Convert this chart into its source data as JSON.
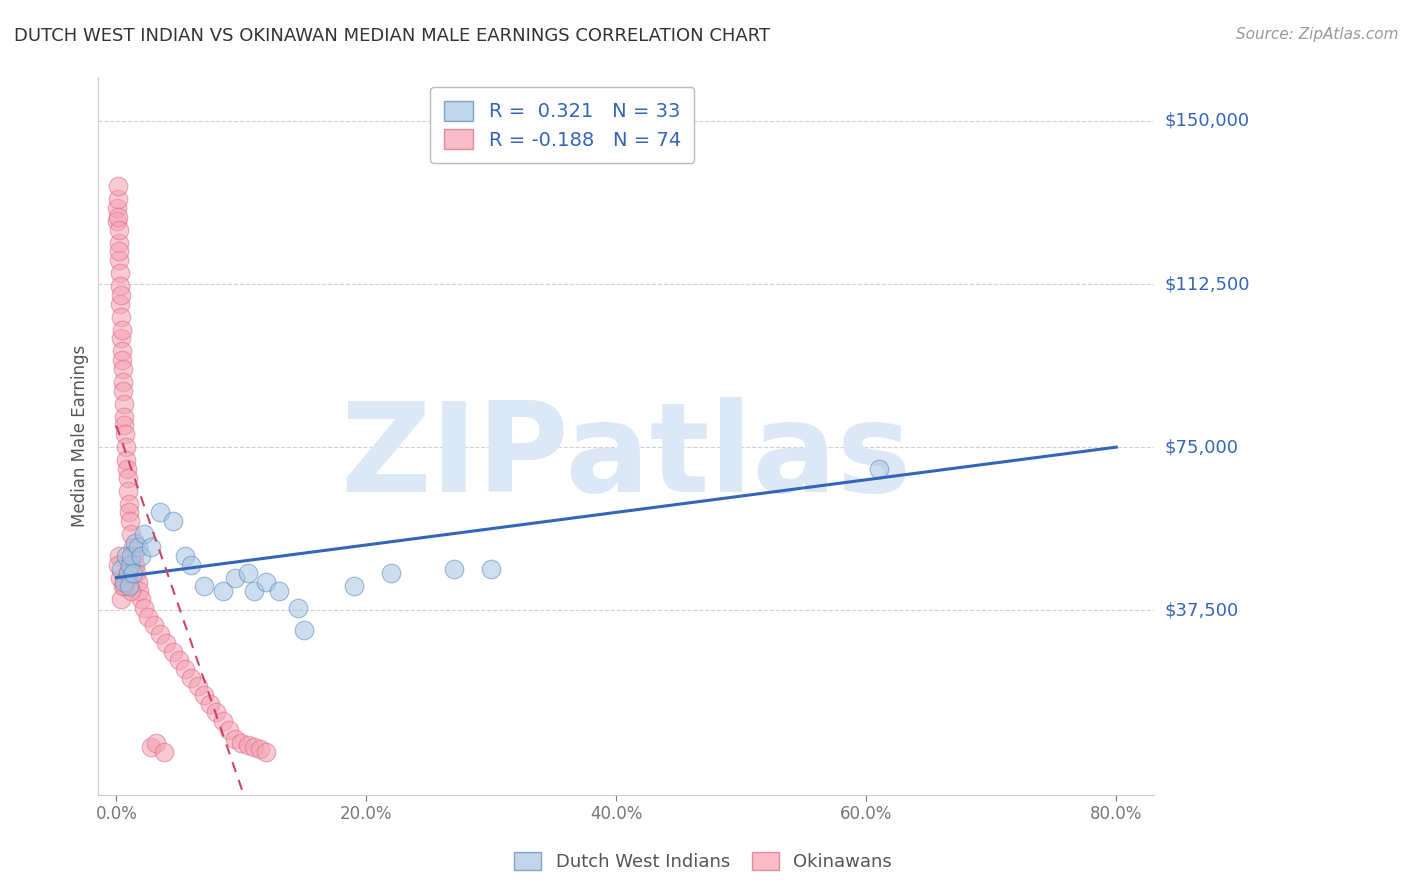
{
  "title": "DUTCH WEST INDIAN VS OKINAWAN MEDIAN MALE EARNINGS CORRELATION CHART",
  "source": "Source: ZipAtlas.com",
  "ylabel": "Median Male Earnings",
  "y_tick_labels": [
    "$37,500",
    "$75,000",
    "$112,500",
    "$150,000"
  ],
  "y_tick_values": [
    37500,
    75000,
    112500,
    150000
  ],
  "x_tick_labels": [
    "0.0%",
    "20.0%",
    "40.0%",
    "60.0%",
    "80.0%"
  ],
  "x_tick_values": [
    0.0,
    20.0,
    40.0,
    60.0,
    80.0
  ],
  "xlim": [
    -1.5,
    83
  ],
  "ylim": [
    -5000,
    160000
  ],
  "blue_color": "#a8c4e0",
  "pink_color": "#f4a0b0",
  "blue_edge": "#5588bb",
  "pink_edge": "#dd6688",
  "trend_blue": "#3366bb",
  "trend_pink": "#cc4466",
  "watermark": "ZIPatlas",
  "watermark_color": "#dce8f5",
  "legend_label_blue": "Dutch West Indians",
  "legend_label_pink": "Okinawans",
  "blue_x": [
    0.4,
    0.6,
    0.8,
    0.9,
    1.0,
    1.1,
    1.2,
    1.3,
    1.5,
    1.7,
    2.0,
    2.2,
    2.8,
    3.5,
    4.5,
    5.5,
    6.0,
    7.0,
    8.5,
    9.5,
    10.5,
    11.0,
    12.0,
    13.0,
    14.5,
    15.0,
    19.0,
    22.0,
    27.0,
    30.0,
    61.0
  ],
  "blue_y": [
    47000,
    44000,
    50000,
    46000,
    43000,
    48000,
    50000,
    46000,
    53000,
    52000,
    50000,
    55000,
    52000,
    60000,
    58000,
    50000,
    48000,
    43000,
    42000,
    45000,
    46000,
    42000,
    44000,
    42000,
    38000,
    33000,
    43000,
    46000,
    47000,
    47000,
    70000
  ],
  "pink_x": [
    0.05,
    0.08,
    0.1,
    0.12,
    0.15,
    0.18,
    0.2,
    0.22,
    0.25,
    0.28,
    0.3,
    0.32,
    0.35,
    0.38,
    0.4,
    0.42,
    0.45,
    0.48,
    0.5,
    0.52,
    0.55,
    0.58,
    0.6,
    0.65,
    0.7,
    0.75,
    0.8,
    0.85,
    0.9,
    0.95,
    1.0,
    1.05,
    1.1,
    1.2,
    1.3,
    1.4,
    1.5,
    1.6,
    1.7,
    1.8,
    2.0,
    2.2,
    2.5,
    3.0,
    3.5,
    4.0,
    4.5,
    5.0,
    5.5,
    6.0,
    6.5,
    7.0,
    7.5,
    8.0,
    8.5,
    9.0,
    9.5,
    10.0,
    10.5,
    11.0,
    11.5,
    12.0,
    1.0,
    0.6,
    0.3,
    0.4,
    0.2,
    0.15,
    1.2,
    0.8,
    0.5,
    2.8,
    3.2,
    3.8
  ],
  "pink_y": [
    130000,
    127000,
    132000,
    128000,
    135000,
    122000,
    125000,
    118000,
    120000,
    115000,
    112000,
    108000,
    110000,
    105000,
    100000,
    102000,
    97000,
    95000,
    93000,
    90000,
    88000,
    85000,
    82000,
    80000,
    78000,
    75000,
    72000,
    70000,
    68000,
    65000,
    62000,
    60000,
    58000,
    55000,
    52000,
    50000,
    48000,
    46000,
    44000,
    42000,
    40000,
    38000,
    36000,
    34000,
    32000,
    30000,
    28000,
    26000,
    24000,
    22000,
    20000,
    18000,
    16000,
    14000,
    12000,
    10000,
    8000,
    7000,
    6500,
    6000,
    5500,
    5000,
    47000,
    43000,
    45000,
    40000,
    50000,
    48000,
    42000,
    45000,
    43000,
    6000,
    7000,
    5000
  ]
}
